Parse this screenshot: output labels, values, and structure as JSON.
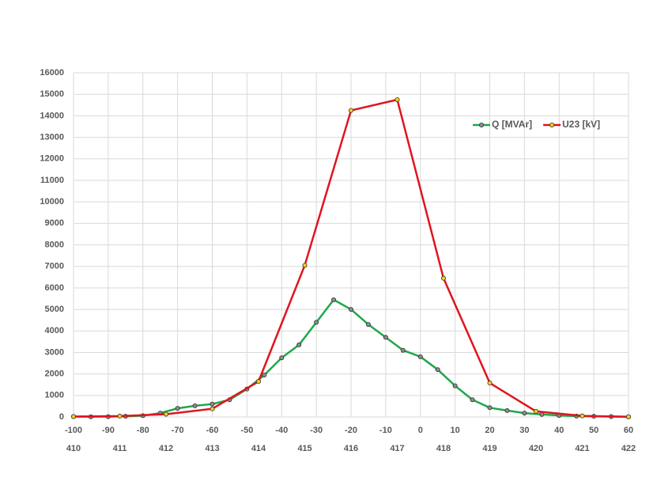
{
  "chart_data": {
    "type": "line",
    "xlim": [
      -100,
      60
    ],
    "xticks": [
      -100,
      -90,
      -80,
      -70,
      -60,
      -50,
      -40,
      -30,
      -20,
      -10,
      0,
      10,
      20,
      30,
      40,
      50,
      60
    ],
    "x2lim": [
      410,
      422
    ],
    "x2ticks": [
      410,
      411,
      412,
      413,
      414,
      415,
      416,
      417,
      418,
      419,
      420,
      421,
      422
    ],
    "ylim": [
      0,
      16000
    ],
    "yticks": [
      0,
      1000,
      2000,
      3000,
      4000,
      5000,
      6000,
      7000,
      8000,
      9000,
      10000,
      11000,
      12000,
      13000,
      14000,
      15000,
      16000
    ],
    "grid": true,
    "legend": "upper right",
    "series": [
      {
        "name": "Q [MVAr]",
        "color": "#1fa84a",
        "marker_color": "#8c8c8c",
        "axis": "x",
        "x": [
          -100,
          -95,
          -90,
          -85,
          -80,
          -75,
          -70,
          -65,
          -60,
          -55,
          -50,
          -45,
          -40,
          -35,
          -30,
          -25,
          -20,
          -15,
          -10,
          -5,
          0,
          5,
          10,
          15,
          20,
          25,
          30,
          35,
          40,
          45,
          50,
          55,
          60
        ],
        "values": [
          20,
          10,
          15,
          30,
          60,
          180,
          400,
          520,
          600,
          800,
          1300,
          1950,
          2750,
          3350,
          4400,
          5450,
          5000,
          4300,
          3700,
          3100,
          2800,
          2200,
          1450,
          800,
          430,
          300,
          180,
          120,
          70,
          40,
          30,
          20,
          10
        ]
      },
      {
        "name": "U23 [kV]",
        "color": "#e0141e",
        "marker_color": "#f2d21a",
        "axis": "x2",
        "x": [
          410,
          411,
          412,
          413,
          414,
          415,
          416,
          417,
          418,
          419,
          420,
          421,
          422
        ],
        "values": [
          20,
          40,
          130,
          380,
          1650,
          7050,
          14250,
          14750,
          6450,
          1580,
          260,
          50,
          10
        ]
      }
    ]
  }
}
